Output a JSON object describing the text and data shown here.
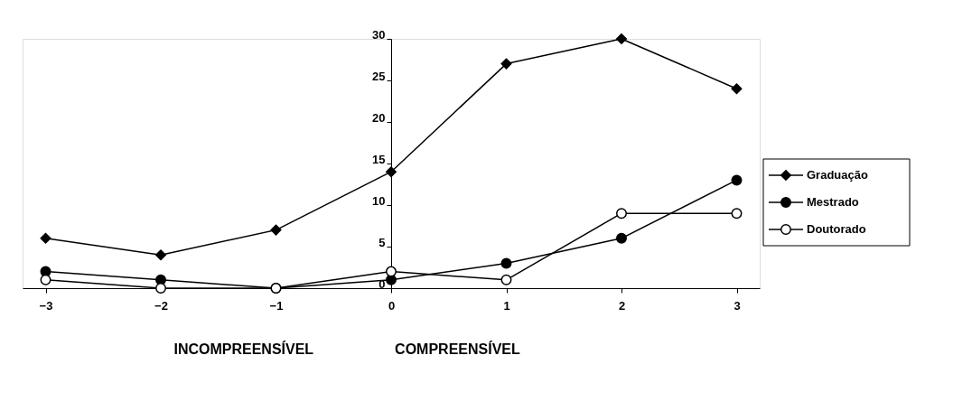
{
  "chart_data": {
    "type": "line",
    "x": [
      -3,
      -2,
      -1,
      0,
      1,
      2,
      3
    ],
    "series": [
      {
        "name": "Graduação",
        "color": "#000000",
        "marker": "diamond",
        "values": [
          6,
          4,
          7,
          14,
          27,
          30,
          24
        ]
      },
      {
        "name": "Mestrado",
        "color": "#000000",
        "marker": "circle",
        "values": [
          2,
          1,
          0,
          1,
          3,
          6,
          13
        ]
      },
      {
        "name": "Doutorado",
        "color": "#000000",
        "marker": "circle",
        "colors": [
          "#ffffff",
          "#ffffff",
          "#ffffff",
          "#ffffff",
          "#ffffff",
          "#ffffff",
          "#ffffff"
        ],
        "values": [
          1,
          0,
          0,
          2,
          1,
          9,
          9
        ]
      }
    ],
    "xlim": [
      -3.2,
      3.2
    ],
    "ylim": [
      0,
      30
    ],
    "xticks": [
      -3,
      -2,
      -1,
      0,
      1,
      2,
      3
    ],
    "yticks": [
      0,
      5,
      10,
      15,
      20,
      25,
      30
    ],
    "annotations": [
      "INCOMPREENSÍVEL",
      "COMPREENSÍVEL"
    ],
    "legend": "right",
    "grid": false,
    "line_style": "solid"
  }
}
